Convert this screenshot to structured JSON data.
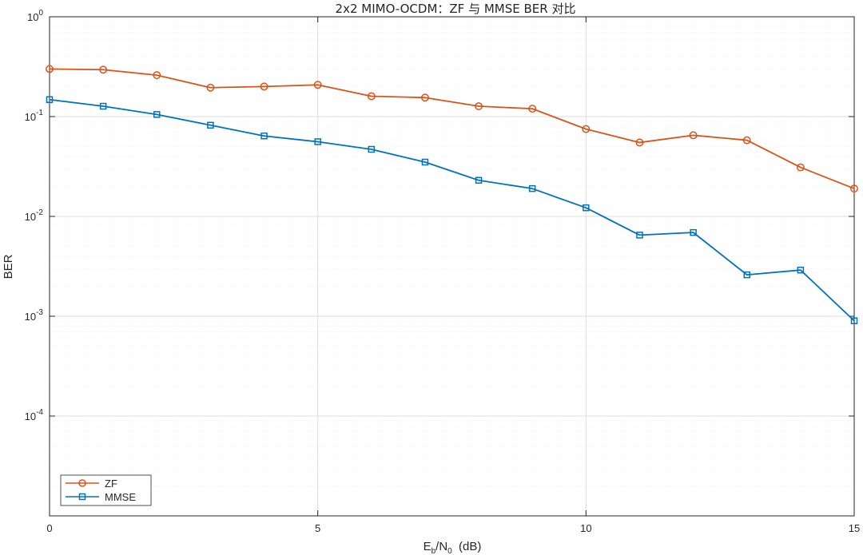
{
  "chart_data": {
    "type": "line",
    "title": "2x2 MIMO-OCDM：ZF 与 MMSE BER 对比",
    "xlabel": {
      "base": "E",
      "sub1": "b",
      "mid": "/N",
      "sub2": "0",
      "tail": "  (dB)"
    },
    "ylabel": "BER",
    "xlim": [
      0,
      15
    ],
    "ylim": [
      1e-05,
      1
    ],
    "yscale": "log",
    "grid": true,
    "legend_position": "bottom-left",
    "x_ticks": [
      0,
      5,
      10,
      15
    ],
    "x_tick_labels": [
      "0",
      "5",
      "10",
      "15"
    ],
    "y_ticks": [
      {
        "base": "10",
        "exp": "0",
        "value": 1
      },
      {
        "base": "10",
        "exp": "-1",
        "value": 0.1
      },
      {
        "base": "10",
        "exp": "-2",
        "value": 0.01
      },
      {
        "base": "10",
        "exp": "-3",
        "value": 0.001
      },
      {
        "base": "10",
        "exp": "-4",
        "value": 0.0001
      }
    ],
    "x": [
      0,
      1,
      2,
      3,
      4,
      5,
      6,
      7,
      8,
      9,
      10,
      11,
      12,
      13,
      14,
      15
    ],
    "series": [
      {
        "name": "ZF",
        "color": "#D95319",
        "marker": "circle",
        "values": [
          0.3,
          0.295,
          0.26,
          0.195,
          0.2,
          0.208,
          0.16,
          0.155,
          0.127,
          0.12,
          0.075,
          0.055,
          0.065,
          0.058,
          0.031,
          0.019
        ]
      },
      {
        "name": "MMSE",
        "color": "#0072BD",
        "marker": "square",
        "values": [
          0.148,
          0.127,
          0.105,
          0.082,
          0.064,
          0.056,
          0.047,
          0.035,
          0.023,
          0.019,
          0.0122,
          0.0065,
          0.0069,
          0.0026,
          0.0029,
          0.0009
        ]
      }
    ]
  }
}
